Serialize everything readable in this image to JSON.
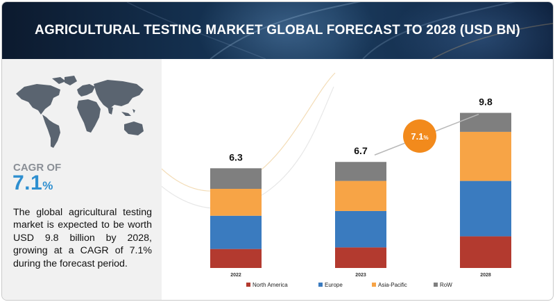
{
  "header": {
    "title": "AGRICULTURAL TESTING MARKET GLOBAL FORECAST TO 2028 (USD BN)"
  },
  "sidebar": {
    "cagr_label": "CAGR OF",
    "cagr_value": "7.1",
    "cagr_unit": "%",
    "description": "The global agricultural testing market is expected to be worth USD 9.8 billion by 2028, growing at a CAGR of 7.1% during the forecast period."
  },
  "colors": {
    "north_america": "#b33a2f",
    "europe": "#3a7bbf",
    "asia_pacific": "#f7a446",
    "row": "#7f7f7f",
    "badge": "#f28a1c",
    "accent": "#2e8fd0"
  },
  "chart_data": {
    "type": "bar",
    "stacked": true,
    "categories": [
      "2022",
      "2023",
      "2028"
    ],
    "totals": [
      "6.3",
      "6.7",
      "9.8"
    ],
    "series": [
      {
        "name": "North America",
        "values": [
          1.2,
          1.3,
          2.0
        ]
      },
      {
        "name": "Europe",
        "values": [
          2.1,
          2.3,
          3.5
        ]
      },
      {
        "name": "Asia-Pacific",
        "values": [
          1.7,
          1.9,
          3.1
        ]
      },
      {
        "name": "RoW",
        "values": [
          1.3,
          1.2,
          1.2
        ]
      }
    ],
    "ylim": [
      0,
      10
    ],
    "grid": false,
    "legend_position": "bottom",
    "annotation": {
      "value": "7.1",
      "unit": "%"
    }
  }
}
